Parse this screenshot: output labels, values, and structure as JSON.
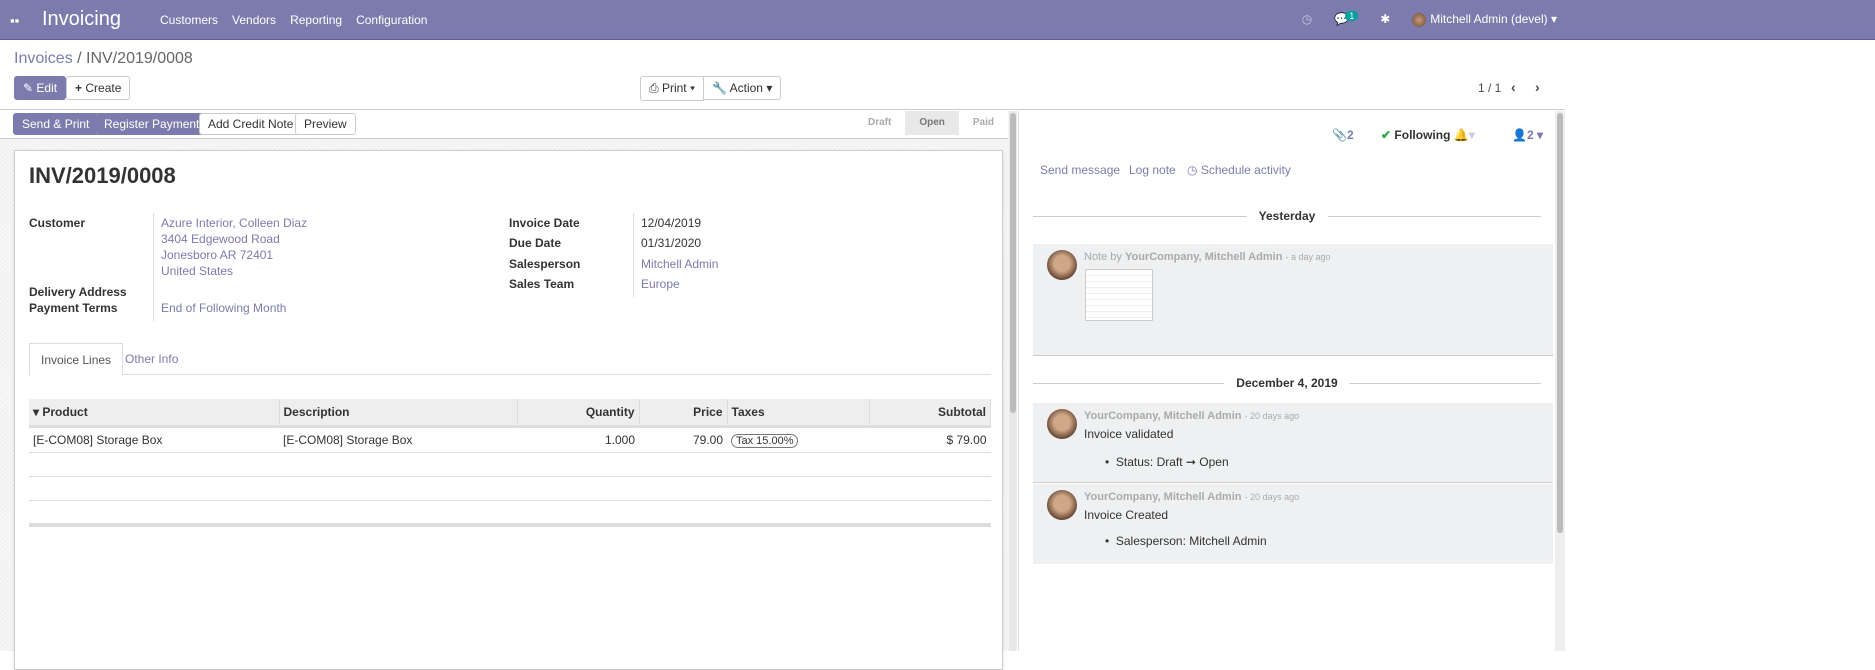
{
  "navbar": {
    "app": "Invoicing",
    "menu": [
      "Customers",
      "Vendors",
      "Reporting",
      "Configuration"
    ],
    "messages_count": "1",
    "user": "Mitchell Admin (devel)",
    "color": "#7C7BAD"
  },
  "breadcrumb": {
    "parent": "Invoices",
    "current": "INV/2019/0008"
  },
  "buttons": {
    "edit": "Edit",
    "create": "Create",
    "print": "Print",
    "action": "Action",
    "send_print": "Send & Print",
    "register_payment": "Register Payment",
    "add_credit_note": "Add Credit Note",
    "preview": "Preview"
  },
  "pager": "1 / 1",
  "statusbar": [
    "Draft",
    "Open",
    "Paid"
  ],
  "statusbar_current": "Open",
  "invoice": {
    "number": "INV/2019/0008",
    "customer_label": "Customer",
    "customer": [
      "Azure Interior, Colleen Diaz",
      "3404 Edgewood Road",
      "Jonesboro AR 72401",
      "United States"
    ],
    "delivery_label": "Delivery Address",
    "terms_label": "Payment Terms",
    "terms": "End of Following Month",
    "invoice_date_label": "Invoice Date",
    "invoice_date": "12/04/2019",
    "due_date_label": "Due Date",
    "due_date": "01/31/2020",
    "salesperson_label": "Salesperson",
    "salesperson": "Mitchell Admin",
    "team_label": "Sales Team",
    "team": "Europe"
  },
  "tabs": [
    "Invoice Lines",
    "Other Info"
  ],
  "table": {
    "headers": [
      "Product",
      "Description",
      "Quantity",
      "Price",
      "Taxes",
      "Subtotal"
    ],
    "rows": [
      [
        "[E-COM08] Storage Box",
        "[E-COM08] Storage Box",
        "1.000",
        "79.00",
        "Tax 15.00%",
        "$ 79.00"
      ]
    ]
  },
  "chatter": {
    "attachments": "2",
    "following": "Following",
    "followers": "2",
    "send_message": "Send message",
    "log_note": "Log note",
    "schedule_activity": "Schedule activity",
    "groups": [
      {
        "date": "Yesterday"
      },
      {
        "date": "December 4, 2019"
      }
    ],
    "messages": [
      {
        "prefix": "Note by",
        "author": "YourCompany, Mitchell Admin",
        "time": "- a day ago"
      },
      {
        "author": "YourCompany, Mitchell Admin",
        "time": "- 20 days ago",
        "body": "Invoice validated",
        "tracking": "Status: Draft ➞ Open"
      },
      {
        "author": "YourCompany, Mitchell Admin",
        "time": "- 20 days ago",
        "body": "Invoice Created",
        "tracking": "Salesperson: Mitchell Admin"
      }
    ]
  }
}
